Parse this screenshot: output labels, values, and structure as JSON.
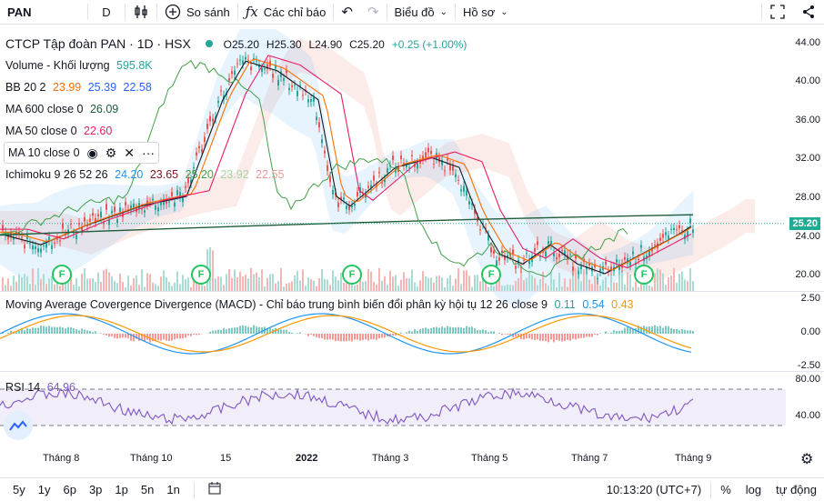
{
  "toolbar": {
    "symbol": "PAN",
    "interval": "D",
    "compare_label": "So sánh",
    "indicators_label": "Các chỉ báo",
    "chart_type_label": "Biểu đồ",
    "profile_label": "Hồ sơ"
  },
  "legend": {
    "title": "CTCP Tập đoàn PAN · 1D · HSX",
    "ohlc": {
      "o": "O25.20",
      "h": "H25.30",
      "l": "L24.90",
      "c": "C25.20",
      "chg": "+0.25 (+1.00%)"
    },
    "volume": {
      "label": "Volume - Khối lượng",
      "value": "595.8K"
    },
    "bb": {
      "label": "BB 20 2",
      "v1": "23.99",
      "v2": "25.39",
      "v3": "22.58"
    },
    "ma600": {
      "label": "MA 600 close 0",
      "value": "26.09"
    },
    "ma50": {
      "label": "MA 50 close 0",
      "value": "22.60"
    },
    "ma10": {
      "label": "MA 10 close 0"
    },
    "ichimoku": {
      "label": "Ichimoku 9 26 52 26",
      "v1": "24.20",
      "v2": "23.65",
      "v3": "25.20",
      "v4": "23.92",
      "v5": "22.55"
    },
    "macd": {
      "label": "Moving Average Covergence Divergence (MACD) - Chỉ báo trung bình biến đổi phân kỳ hội tụ 12 26 close 9",
      "v1": "0.11",
      "v2": "0.54",
      "v3": "0.43"
    },
    "rsi": {
      "label": "RSI 14",
      "value": "64.96"
    }
  },
  "price_axis": [
    "44.00",
    "40.00",
    "36.00",
    "32.00",
    "28.00",
    "24.00",
    "20.00"
  ],
  "current_price": "25.20",
  "macd_axis": [
    "2.50",
    "0.00",
    "-2.50"
  ],
  "rsi_axis": [
    "80.00",
    "40.00"
  ],
  "time_axis": [
    "Tháng 8",
    "Tháng 10",
    "15",
    "2022",
    "Tháng 3",
    "Tháng 5",
    "Tháng 7",
    "Tháng 9"
  ],
  "ranges": [
    "5y",
    "1y",
    "6p",
    "3p",
    "1p",
    "5n",
    "1n"
  ],
  "bottom_right": {
    "time": "10:13:20 (UTC+7)",
    "pct": "%",
    "log": "log",
    "auto": "tự động"
  },
  "f_badge": "F",
  "colors": {
    "up": "#26a69a",
    "down": "#ef5350",
    "bb": "#2962ff",
    "macd": "#2196f3",
    "signal": "#ff9800",
    "rsi": "#7e57c2",
    "price_tag": "#22ab94"
  }
}
